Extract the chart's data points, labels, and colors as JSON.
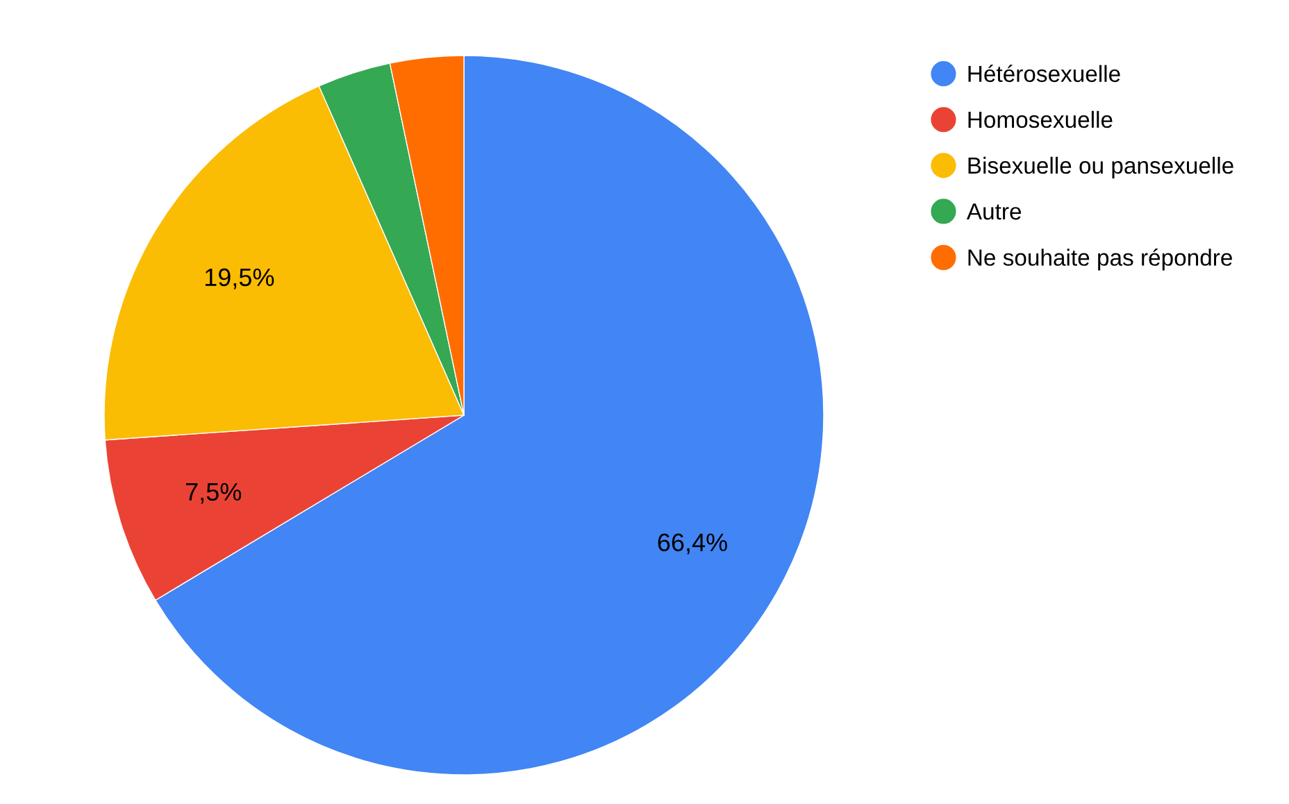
{
  "chart_data": {
    "type": "pie",
    "categories": [
      "Hétérosexuelle",
      "Homosexuelle",
      "Bisexuelle ou pansexuelle",
      "Autre",
      "Ne souhaite pas répondre"
    ],
    "values": [
      66.4,
      7.5,
      19.5,
      3.3,
      3.3
    ],
    "value_labels": [
      "66,4%",
      "7,5%",
      "19,5%",
      null,
      null
    ],
    "colors": [
      "#4285f4",
      "#ea4335",
      "#fbbc04",
      "#34a853",
      "#ff6d01"
    ],
    "legend": "top right"
  }
}
